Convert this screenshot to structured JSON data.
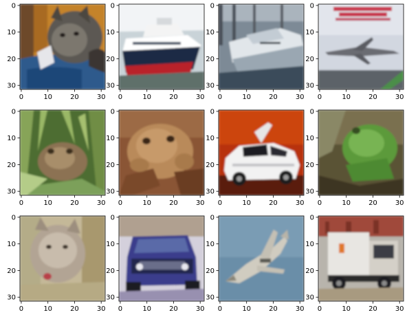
{
  "figure": {
    "grid": {
      "rows": 3,
      "cols": 4
    },
    "axes": {
      "x_ticks": [
        "0",
        "10",
        "20",
        "30"
      ],
      "y_ticks": [
        "0",
        "10",
        "20",
        "30"
      ],
      "x_range": [
        -0.5,
        31.5
      ],
      "y_range": [
        -0.5,
        31.5
      ],
      "y_inverted": true
    },
    "panels": [
      {
        "id": "cat-1",
        "label": "",
        "icon": "cat-image"
      },
      {
        "id": "ship-1",
        "label": "",
        "icon": "ship-image"
      },
      {
        "id": "ship-2",
        "label": "",
        "icon": "ship-image"
      },
      {
        "id": "airplane-1",
        "label": "",
        "icon": "airplane-image"
      },
      {
        "id": "frog-1",
        "label": "",
        "icon": "frog-image"
      },
      {
        "id": "frog-2",
        "label": "",
        "icon": "frog-image"
      },
      {
        "id": "automobile-1",
        "label": "",
        "icon": "automobile-image"
      },
      {
        "id": "frog-3",
        "label": "",
        "icon": "frog-image"
      },
      {
        "id": "cat-2",
        "label": "",
        "icon": "cat-image"
      },
      {
        "id": "automobile-2",
        "label": "",
        "icon": "automobile-image"
      },
      {
        "id": "airplane-2",
        "label": "",
        "icon": "airplane-image"
      },
      {
        "id": "truck-1",
        "label": "",
        "icon": "truck-image"
      }
    ]
  }
}
